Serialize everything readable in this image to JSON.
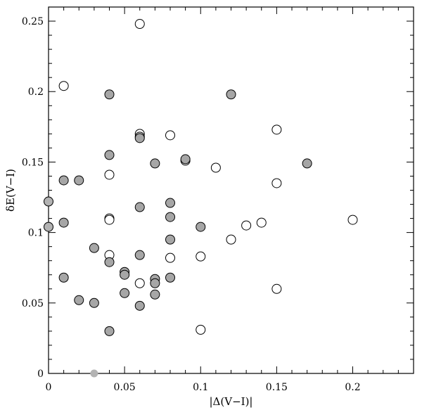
{
  "chart_data": {
    "type": "scatter",
    "xlabel": "|Δ(V−I)|",
    "ylabel": "δE(V−I)",
    "xlim": [
      0,
      0.24
    ],
    "ylim": [
      0,
      0.26
    ],
    "x_ticks": [
      "0",
      "0.05",
      "0.1",
      "0.15",
      "0.2"
    ],
    "x_tick_values": [
      0,
      0.05,
      0.1,
      0.15,
      0.2
    ],
    "y_ticks": [
      "0",
      "0.05",
      "0.1",
      "0.15",
      "0.2",
      "0.25"
    ],
    "y_tick_values": [
      0,
      0.05,
      0.1,
      0.15,
      0.2,
      0.25
    ],
    "grid": false,
    "series": [
      {
        "marker": "open-circle",
        "color": "#ffffff",
        "edge": "#000000",
        "points": [
          [
            0.01,
            0.204
          ],
          [
            0.06,
            0.248
          ],
          [
            0.06,
            0.17
          ],
          [
            0.06,
            0.168
          ],
          [
            0.08,
            0.169
          ],
          [
            0.15,
            0.173
          ],
          [
            0.04,
            0.141
          ],
          [
            0.09,
            0.151
          ],
          [
            0.11,
            0.146
          ],
          [
            0.15,
            0.135
          ],
          [
            0.04,
            0.11
          ],
          [
            0.04,
            0.109
          ],
          [
            0.13,
            0.105
          ],
          [
            0.14,
            0.107
          ],
          [
            0.12,
            0.095
          ],
          [
            0.2,
            0.109
          ],
          [
            0.04,
            0.084
          ],
          [
            0.08,
            0.082
          ],
          [
            0.1,
            0.083
          ],
          [
            0.06,
            0.064
          ],
          [
            0.15,
            0.06
          ],
          [
            0.1,
            0.031
          ]
        ]
      },
      {
        "marker": "filled-circle",
        "color": "#a6a6a6",
        "edge": "#000000",
        "points": [
          [
            0.04,
            0.198
          ],
          [
            0.12,
            0.198
          ],
          [
            0.04,
            0.155
          ],
          [
            0.06,
            0.167
          ],
          [
            0.07,
            0.149
          ],
          [
            0.09,
            0.152
          ],
          [
            0.17,
            0.149
          ],
          [
            0.01,
            0.137
          ],
          [
            0.02,
            0.137
          ],
          [
            0.0,
            0.122
          ],
          [
            0.01,
            0.107
          ],
          [
            0.0,
            0.104
          ],
          [
            0.06,
            0.118
          ],
          [
            0.08,
            0.121
          ],
          [
            0.08,
            0.111
          ],
          [
            0.1,
            0.104
          ],
          [
            0.03,
            0.089
          ],
          [
            0.08,
            0.095
          ],
          [
            0.06,
            0.084
          ],
          [
            0.04,
            0.079
          ],
          [
            0.05,
            0.072
          ],
          [
            0.05,
            0.07
          ],
          [
            0.07,
            0.067
          ],
          [
            0.07,
            0.064
          ],
          [
            0.08,
            0.068
          ],
          [
            0.01,
            0.068
          ],
          [
            0.05,
            0.057
          ],
          [
            0.07,
            0.056
          ],
          [
            0.02,
            0.052
          ],
          [
            0.03,
            0.05
          ],
          [
            0.06,
            0.048
          ],
          [
            0.04,
            0.03
          ]
        ]
      },
      {
        "marker": "light-filled-circle",
        "color": "#b3b3b3",
        "edge": "none",
        "points": [
          [
            0.0,
            0.122
          ],
          [
            0.0,
            0.104
          ],
          [
            0.03,
            0.0
          ]
        ]
      }
    ]
  }
}
